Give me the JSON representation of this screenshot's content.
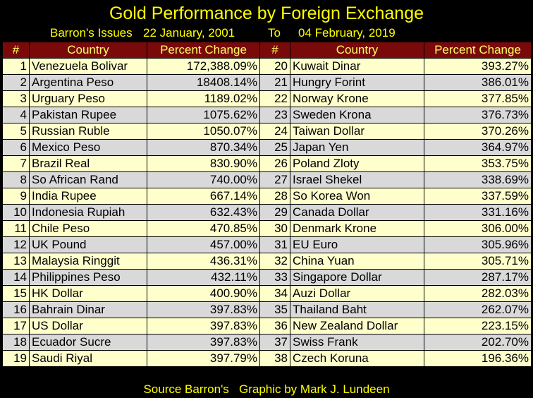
{
  "header": {
    "title": "Gold Performance by Foreign Exchange",
    "subtitle_source": "Barron's Issues",
    "subtitle_start": "22 January, 2001",
    "subtitle_to": "To",
    "subtitle_end": "04 February, 2019"
  },
  "footer": {
    "source": "Source Barron's",
    "credit": "Graphic by Mark J. Lundeen"
  },
  "colors": {
    "background": "#000000",
    "text_accent": "#ffff00",
    "header_bg": "#7a0a0a",
    "row_odd": "#ffffcc",
    "row_even": "#d9d9d9"
  },
  "chart_data": {
    "type": "table",
    "columns": [
      "#",
      "Country",
      "Percent Change",
      "#",
      "Country",
      "Percent Change"
    ],
    "left": [
      {
        "rank": "1",
        "country": "Venezuela Bolivar",
        "pct": "172,388.09%"
      },
      {
        "rank": "2",
        "country": "Argentina Peso",
        "pct": "18408.14%"
      },
      {
        "rank": "3",
        "country": "Urguary Peso",
        "pct": "1189.02%"
      },
      {
        "rank": "4",
        "country": "Pakistan Rupee",
        "pct": "1075.62%"
      },
      {
        "rank": "5",
        "country": "Russian Ruble",
        "pct": "1050.07%"
      },
      {
        "rank": "6",
        "country": "Mexico Peso",
        "pct": "870.34%"
      },
      {
        "rank": "7",
        "country": "Brazil Real",
        "pct": "830.90%"
      },
      {
        "rank": "8",
        "country": "So African Rand",
        "pct": "740.00%"
      },
      {
        "rank": "9",
        "country": "India Rupee",
        "pct": "667.14%"
      },
      {
        "rank": "10",
        "country": "Indonesia Rupiah",
        "pct": "632.43%"
      },
      {
        "rank": "11",
        "country": "Chile Peso",
        "pct": "470.85%"
      },
      {
        "rank": "12",
        "country": "UK Pound",
        "pct": "457.00%"
      },
      {
        "rank": "13",
        "country": "Malaysia Ringgit",
        "pct": "436.31%"
      },
      {
        "rank": "14",
        "country": "Philippines Peso",
        "pct": "432.11%"
      },
      {
        "rank": "15",
        "country": "HK Dollar",
        "pct": "400.90%"
      },
      {
        "rank": "16",
        "country": "Bahrain Dinar",
        "pct": "397.83%"
      },
      {
        "rank": "17",
        "country": "US Dollar",
        "pct": "397.83%"
      },
      {
        "rank": "18",
        "country": "Ecuador Sucre",
        "pct": "397.83%"
      },
      {
        "rank": "19",
        "country": "Saudi Riyal",
        "pct": "397.79%"
      }
    ],
    "right": [
      {
        "rank": "20",
        "country": "Kuwait Dinar",
        "pct": "393.27%"
      },
      {
        "rank": "21",
        "country": "Hungry Forint",
        "pct": "386.01%"
      },
      {
        "rank": "22",
        "country": "Norway Krone",
        "pct": "377.85%"
      },
      {
        "rank": "23",
        "country": "Sweden Krona",
        "pct": "376.73%"
      },
      {
        "rank": "24",
        "country": "Taiwan Dollar",
        "pct": "370.26%"
      },
      {
        "rank": "25",
        "country": "Japan Yen",
        "pct": "364.97%"
      },
      {
        "rank": "26",
        "country": "Poland Zloty",
        "pct": "353.75%"
      },
      {
        "rank": "27",
        "country": "Israel Shekel",
        "pct": "338.69%"
      },
      {
        "rank": "28",
        "country": "So Korea Won",
        "pct": "337.59%"
      },
      {
        "rank": "29",
        "country": "Canada Dollar",
        "pct": "331.16%"
      },
      {
        "rank": "30",
        "country": "Denmark Krone",
        "pct": "306.00%"
      },
      {
        "rank": "31",
        "country": "EU Euro",
        "pct": "305.96%"
      },
      {
        "rank": "32",
        "country": "China Yuan",
        "pct": "305.71%"
      },
      {
        "rank": "33",
        "country": "Singapore Dollar",
        "pct": "287.17%"
      },
      {
        "rank": "34",
        "country": "Auzi Dollar",
        "pct": "282.03%"
      },
      {
        "rank": "35",
        "country": "Thailand Baht",
        "pct": "262.07%"
      },
      {
        "rank": "36",
        "country": "New Zealand Dollar",
        "pct": "223.15%"
      },
      {
        "rank": "37",
        "country": "Swiss Frank",
        "pct": "202.70%"
      },
      {
        "rank": "38",
        "country": "Czech Koruna",
        "pct": "196.36%"
      }
    ]
  }
}
